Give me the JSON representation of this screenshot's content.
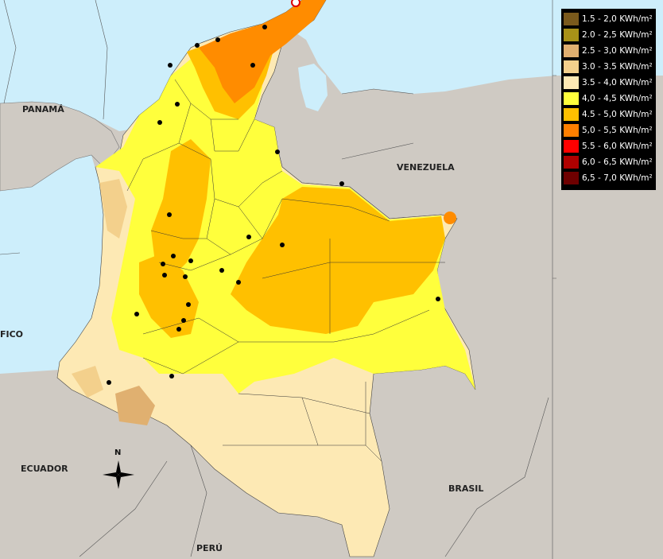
{
  "map": {
    "countries": {
      "panama": "PANAMÁ",
      "venezuela": "VENEZUELA",
      "ecuador": "ECUADOR",
      "peru": "PERÚ",
      "brasil": "BRASIL",
      "pacifico": "FICO"
    },
    "compass": {
      "north": "N"
    },
    "colors": {
      "sea": "#cdeefb",
      "land": "#cfcac3",
      "c35_40": "#fde9b4",
      "c40_45": "#ffff3c",
      "c45_50": "#ffc000",
      "c50_55": "#ff8c00",
      "c30_35": "#f3d08c",
      "c25_30": "#e0b070"
    }
  },
  "legend": {
    "items": [
      {
        "label": "1.5 - 2,0 KWh/m²",
        "color": "#7a5a1c"
      },
      {
        "label": "2.0 - 2,5 KWh/m²",
        "color": "#a89218"
      },
      {
        "label": "2.5 - 3,0 KWh/m²",
        "color": "#e0b070"
      },
      {
        "label": "3.0 - 3.5 KWh/m²",
        "color": "#f3d08c"
      },
      {
        "label": "3.5 - 4,0 KWh/m²",
        "color": "#fde9b4"
      },
      {
        "label": "4,0 - 4,5 KWh/m²",
        "color": "#ffff3c"
      },
      {
        "label": "4.5 - 5,0 KWh/m²",
        "color": "#ffc000"
      },
      {
        "label": "5,0 - 5,5 KWh/m²",
        "color": "#ff7f00"
      },
      {
        "label": "5.5 - 6,0 KWh/m²",
        "color": "#ff0000"
      },
      {
        "label": "6,0 - 6,5 KWh/m²",
        "color": "#b00000"
      },
      {
        "label": "6,5 - 7,0 KWh/m²",
        "color": "#6e0000"
      }
    ]
  }
}
